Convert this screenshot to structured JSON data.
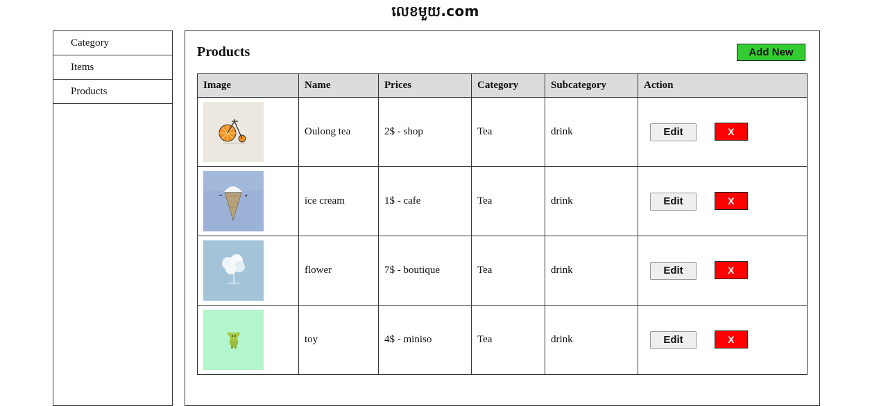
{
  "site": {
    "title": "លេខមួយ.com"
  },
  "sidebar": {
    "items": [
      {
        "label": "Category"
      },
      {
        "label": "Items"
      },
      {
        "label": "Products"
      }
    ]
  },
  "main": {
    "title": "Products",
    "add_label": "Add New",
    "columns": [
      "Image",
      "Name",
      "Prices",
      "Category",
      "Subcategory",
      "Action"
    ],
    "rows": [
      {
        "image": "orange-bicycle-illustration",
        "name": "Oulong tea",
        "price": "2$ - shop",
        "category": "Tea",
        "subcategory": "drink",
        "edit_label": "Edit",
        "delete_label": "X"
      },
      {
        "image": "ice-cream-iceberg-illustration",
        "name": "ice cream",
        "price": "1$ - cafe",
        "category": "Tea",
        "subcategory": "drink",
        "edit_label": "Edit",
        "delete_label": "X"
      },
      {
        "image": "white-flower-illustration",
        "name": "flower",
        "price": "7$ - boutique",
        "category": "Tea",
        "subcategory": "drink",
        "edit_label": "Edit",
        "delete_label": "X"
      },
      {
        "image": "green-toy-illustration",
        "name": "toy",
        "price": "4$ - miniso",
        "category": "Tea",
        "subcategory": "drink",
        "edit_label": "Edit",
        "delete_label": "X"
      }
    ]
  },
  "colors": {
    "add_button": "#33cc33",
    "delete_button": "#ff0000",
    "header_bg": "#dcdcdc"
  }
}
